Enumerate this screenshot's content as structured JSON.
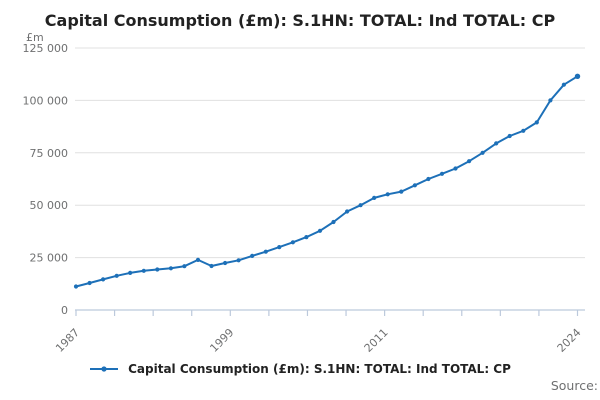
{
  "header": {
    "title": "Capital Consumption (£m): S.1HN: TOTAL: Ind TOTAL: CP"
  },
  "y_axis": {
    "unit": "£m",
    "ticks": [
      {
        "value": 0,
        "label": "0"
      },
      {
        "value": 25000,
        "label": "25 000"
      },
      {
        "value": 50000,
        "label": "50 000"
      },
      {
        "value": 75000,
        "label": "75 000"
      },
      {
        "value": 100000,
        "label": "100 000"
      },
      {
        "value": 125000,
        "label": "125 000"
      }
    ]
  },
  "x_axis": {
    "tick_count": 14,
    "labels": [
      {
        "index": 0,
        "label": "1987"
      },
      {
        "index": 4,
        "label": "1999"
      },
      {
        "index": 8,
        "label": "2011"
      },
      {
        "index": 13,
        "label": "2024"
      }
    ]
  },
  "legend": {
    "label": "Capital Consumption (£m): S.1HN: TOTAL: Ind TOTAL: CP"
  },
  "source": {
    "label": "Source:"
  },
  "colors": {
    "line": "#1d70b8",
    "grid": "#e0e0e0",
    "axis": "#bcc9dc",
    "tick_text": "#6f7071",
    "title_text": "#222222"
  },
  "chart_data": {
    "type": "line",
    "title": "Capital Consumption (£m): S.1HN: TOTAL: Ind TOTAL: CP",
    "xlabel": "",
    "ylabel": "£m",
    "ylim": [
      0,
      125000
    ],
    "grid": true,
    "legend_position": "bottom",
    "x": [
      1987,
      1988,
      1989,
      1990,
      1991,
      1992,
      1993,
      1994,
      1995,
      1996,
      1997,
      1998,
      1999,
      2000,
      2001,
      2002,
      2003,
      2004,
      2005,
      2006,
      2007,
      2008,
      2009,
      2010,
      2011,
      2012,
      2013,
      2014,
      2015,
      2016,
      2017,
      2018,
      2019,
      2020,
      2021,
      2022,
      2023,
      2024
    ],
    "series": [
      {
        "name": "Capital Consumption (£m): S.1HN: TOTAL: Ind TOTAL: CP",
        "values": [
          11200,
          12900,
          14600,
          16300,
          17700,
          18700,
          19300,
          19900,
          20900,
          23900,
          21000,
          22400,
          23700,
          25800,
          27800,
          30000,
          32300,
          34800,
          37800,
          42000,
          47000,
          50000,
          53500,
          55200,
          56500,
          59500,
          62500,
          65000,
          67500,
          71000,
          75000,
          79500,
          83000,
          85500,
          89500,
          100000,
          107500,
          111500
        ]
      }
    ]
  }
}
